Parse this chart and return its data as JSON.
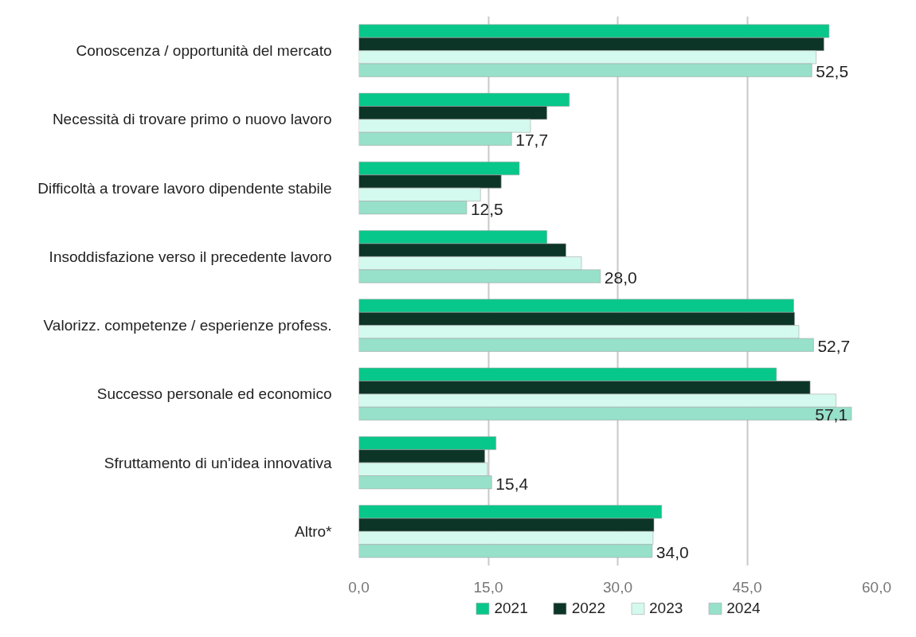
{
  "chart_data": {
    "type": "bar",
    "orientation": "horizontal",
    "categories": [
      "Conoscenza / opportunità del mercato",
      "Necessità di trovare primo o nuovo lavoro",
      "Difficoltà a trovare lavoro dipendente stabile",
      "Insoddisfazione verso il precedente lavoro",
      "Valorizz. competenze / esperienze profess.",
      "Successo personale ed economico",
      "Sfruttamento di un'idea innovativa",
      "Altro*"
    ],
    "series": [
      {
        "name": "2021",
        "color": "#08c78a",
        "values": [
          54.5,
          24.4,
          18.6,
          21.8,
          50.4,
          48.4,
          15.9,
          35.1
        ]
      },
      {
        "name": "2022",
        "color": "#0d3527",
        "values": [
          53.9,
          21.8,
          16.5,
          24.0,
          50.5,
          52.3,
          14.6,
          34.2
        ]
      },
      {
        "name": "2023",
        "color": "#d4f9ee",
        "values": [
          53.0,
          19.9,
          14.1,
          25.8,
          51.0,
          55.3,
          14.9,
          34.1
        ]
      },
      {
        "name": "2024",
        "color": "#97e0c9",
        "values": [
          52.5,
          17.7,
          12.5,
          28.0,
          52.7,
          57.1,
          15.4,
          34.0
        ],
        "value_labels": [
          "52,5",
          "17,7",
          "12,5",
          "28,0",
          "52,7",
          "57,1",
          "15,4",
          "34,0"
        ]
      }
    ],
    "xlim": [
      0,
      60
    ],
    "xticks": [
      {
        "value": 0,
        "label": "0,0"
      },
      {
        "value": 15,
        "label": "15,0"
      },
      {
        "value": 30,
        "label": "30,0"
      },
      {
        "value": 45,
        "label": "45,0"
      },
      {
        "value": 60,
        "label": "60,0"
      }
    ],
    "grid": "x",
    "legend": "bottom"
  }
}
